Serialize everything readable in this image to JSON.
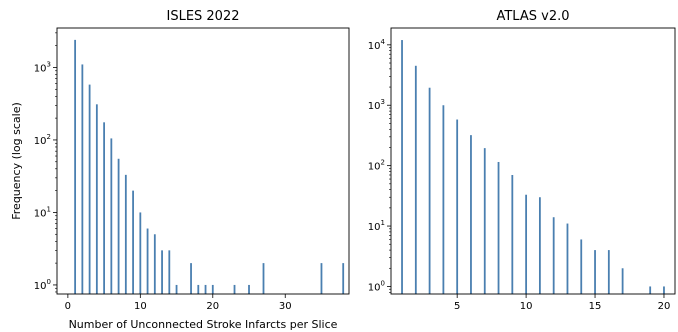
{
  "chart_data": [
    {
      "type": "bar",
      "title": "ISLES 2022",
      "xlabel": "Number of Unconnected Stroke Infarcts per Slice",
      "ylabel": "Frequency (log scale)",
      "yscale": "log",
      "xlim": [
        -1.5,
        38.8
      ],
      "ylim": [
        0.75,
        3500
      ],
      "xticks": [
        0,
        10,
        20,
        30
      ],
      "yticks": [
        1,
        10,
        100,
        1000
      ],
      "color": "#4a7fb0",
      "x": [
        1,
        2,
        3,
        4,
        5,
        6,
        7,
        8,
        9,
        10,
        11,
        12,
        13,
        14,
        15,
        17,
        18,
        19,
        20,
        23,
        25,
        27,
        35,
        38
      ],
      "values": [
        2400,
        1100,
        580,
        310,
        175,
        105,
        55,
        33,
        20,
        10,
        6,
        5,
        3,
        3,
        1,
        2,
        1,
        1,
        1,
        1,
        1,
        2,
        2,
        2
      ]
    },
    {
      "type": "bar",
      "title": "ATLAS v2.0",
      "xlabel": "",
      "ylabel": "",
      "yscale": "log",
      "xlim": [
        0.2,
        20.8
      ],
      "ylim": [
        0.75,
        19000
      ],
      "xticks": [
        5,
        10,
        15,
        20
      ],
      "yticks": [
        1,
        10,
        100,
        1000,
        10000
      ],
      "color": "#4a7fb0",
      "x": [
        1,
        2,
        3,
        4,
        5,
        6,
        7,
        8,
        9,
        10,
        11,
        12,
        13,
        14,
        15,
        16,
        17,
        19,
        20
      ],
      "values": [
        12000,
        4500,
        1950,
        1000,
        580,
        320,
        195,
        115,
        70,
        33,
        30,
        14,
        11,
        6,
        4,
        4,
        2,
        1,
        1
      ]
    }
  ]
}
